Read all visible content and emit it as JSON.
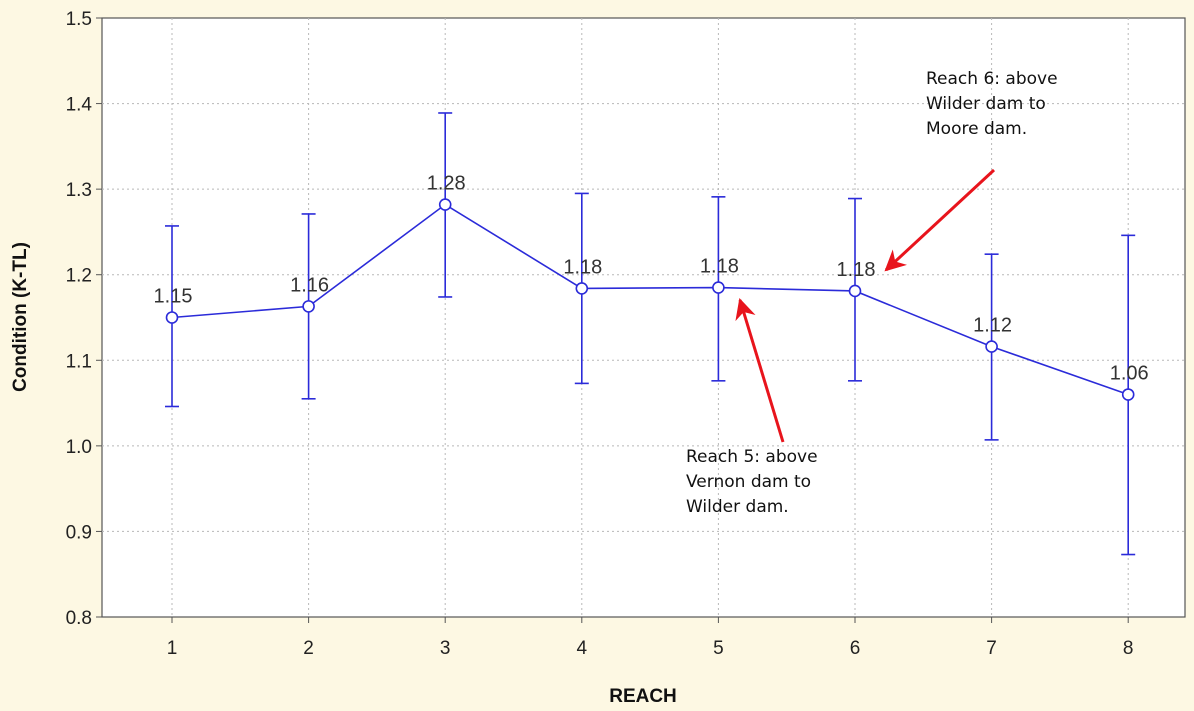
{
  "chart_data": {
    "type": "line",
    "title": "",
    "xlabel": "REACH",
    "ylabel": "Condition (K-TL)",
    "categories": [
      "1",
      "2",
      "3",
      "4",
      "5",
      "6",
      "7",
      "8"
    ],
    "x": [
      1,
      2,
      3,
      4,
      5,
      6,
      7,
      8
    ],
    "series": [
      {
        "values": [
          1.15,
          1.163,
          1.282,
          1.184,
          1.185,
          1.181,
          1.116,
          1.06
        ],
        "error_upper": [
          1.257,
          1.271,
          1.389,
          1.295,
          1.291,
          1.289,
          1.224,
          1.246
        ],
        "error_lower": [
          1.046,
          1.055,
          1.174,
          1.073,
          1.076,
          1.076,
          1.007,
          0.873
        ],
        "data_labels": [
          "1.15",
          "1.16",
          "1.28",
          "1.18",
          "1.18",
          "1.18",
          "1.12",
          "1.06"
        ],
        "color": "#2b2bd9"
      }
    ],
    "ylim": [
      0.8,
      1.5
    ],
    "yticks": [
      "0.8",
      "0.9",
      "1.0",
      "1.1",
      "1.2",
      "1.3",
      "1.4",
      "1.5"
    ],
    "xticks": [
      "1",
      "2",
      "3",
      "4",
      "5",
      "6",
      "7",
      "8"
    ],
    "grid": true,
    "annotations": [
      {
        "lines": [
          "Reach 6: above",
          "Wilder dam to",
          "Moore dam."
        ],
        "points_to_x": 6,
        "arrow_color": "#e8141c"
      },
      {
        "lines": [
          "Reach 5: above",
          "Vernon dam to",
          "Wilder dam."
        ],
        "points_to_x": 5,
        "arrow_color": "#e8141c"
      }
    ]
  }
}
